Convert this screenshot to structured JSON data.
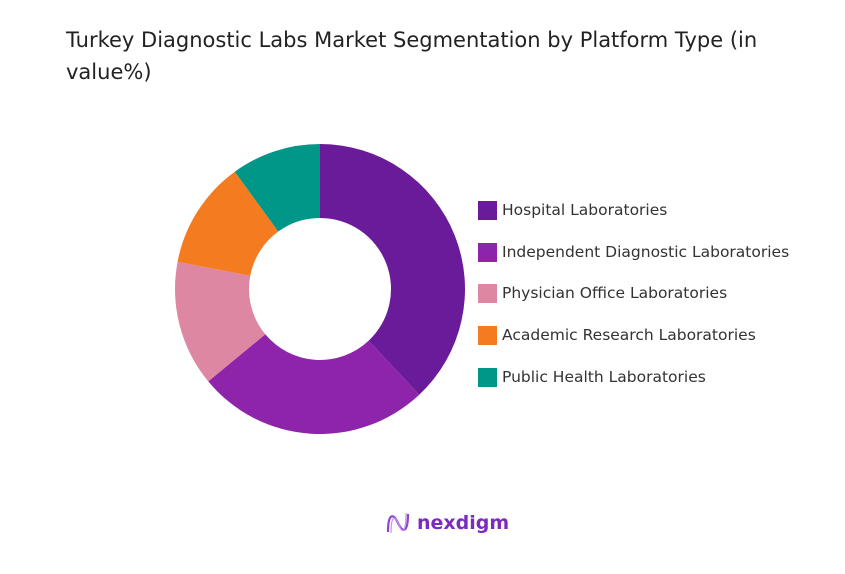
{
  "title": "Turkey Diagnostic Labs Market Segmentation by Platform Type (in value%)",
  "chart_data": {
    "type": "pie",
    "donut": true,
    "title": "Turkey Diagnostic Labs Market Segmentation by Platform Type (in value%)",
    "categories": [
      "Hospital Laboratories",
      "Independent Diagnostic Laboratories",
      "Physician Office Laboratories",
      "Academic Research Laboratories",
      "Public Health Laboratories"
    ],
    "values": [
      38,
      26,
      14,
      12,
      10
    ],
    "colors": [
      "#6a1b9a",
      "#8e24aa",
      "#de87a2",
      "#f47b20",
      "#009688"
    ],
    "legend": "right"
  },
  "brand": {
    "name": "nexdigm",
    "color": "#7b2cbf"
  }
}
